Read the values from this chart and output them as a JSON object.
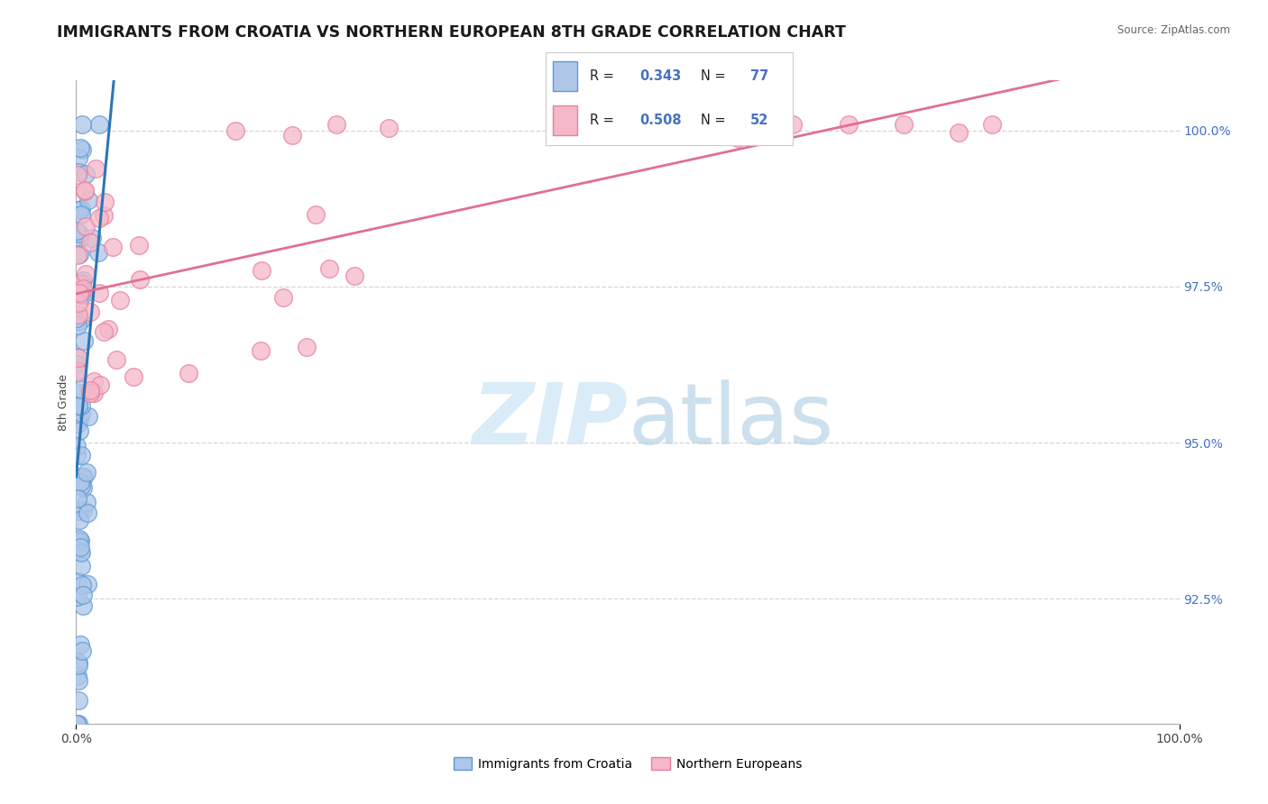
{
  "title": "IMMIGRANTS FROM CROATIA VS NORTHERN EUROPEAN 8TH GRADE CORRELATION CHART",
  "source": "Source: ZipAtlas.com",
  "ylabel": "8th Grade",
  "ytick_labels": [
    "100.0%",
    "97.5%",
    "95.0%",
    "92.5%"
  ],
  "ytick_values": [
    1.0,
    0.975,
    0.95,
    0.925
  ],
  "xlim": [
    0.0,
    1.0
  ],
  "ylim": [
    0.905,
    1.008
  ],
  "legend_r1": "0.343",
  "legend_n1": "77",
  "legend_r2": "0.508",
  "legend_n2": "52",
  "color_blue": "#aec6e8",
  "color_blue_edge": "#5b9bd5",
  "color_pink": "#f4b8c8",
  "color_pink_edge": "#e87fa0",
  "color_trendline_blue": "#2e75b6",
  "color_trendline_pink": "#e07090",
  "watermark_color": "#d6eaf8",
  "background_color": "#ffffff",
  "grid_color": "#cccccc",
  "title_fontsize": 12.5,
  "axis_label_fontsize": 9,
  "tick_fontsize": 10,
  "tick_color": "#4472c4",
  "source_fontsize": 8.5
}
